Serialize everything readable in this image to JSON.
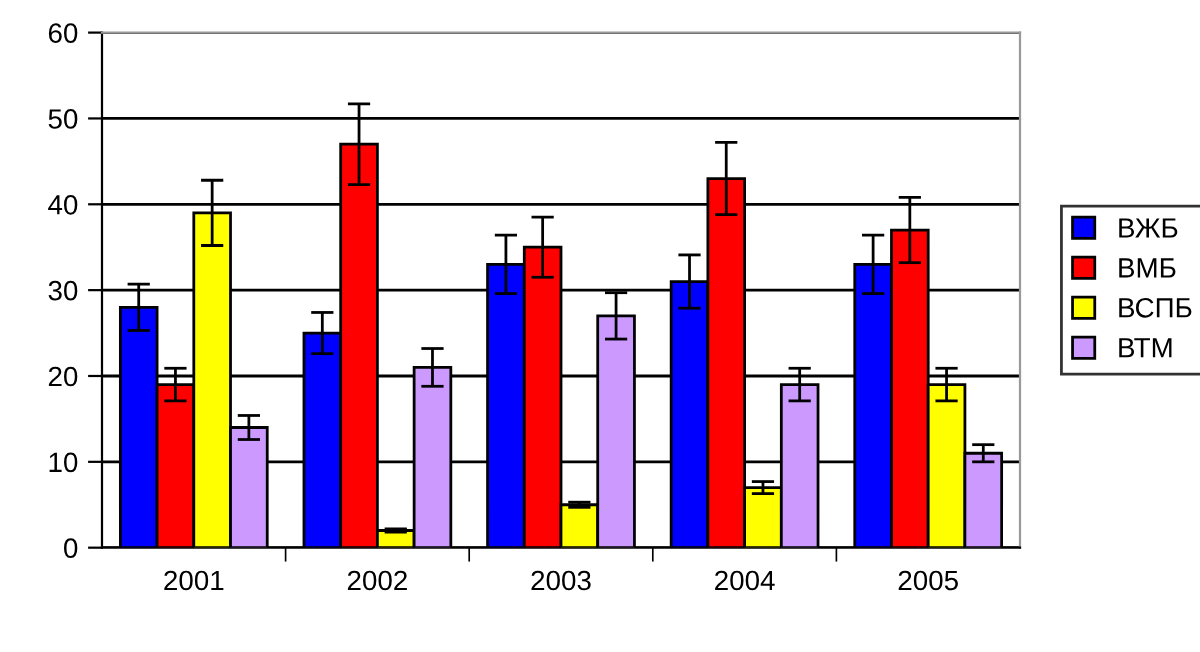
{
  "chart_data": {
    "type": "bar",
    "categories": [
      "2001",
      "2002",
      "2003",
      "2004",
      "2005"
    ],
    "series": [
      {
        "name": "ВЖБ",
        "color": "#0000ff",
        "values": [
          28,
          25,
          33,
          31,
          33
        ],
        "errors": [
          2.7,
          2.4,
          3.4,
          3.1,
          3.4
        ]
      },
      {
        "name": "ВМБ",
        "color": "#ff0000",
        "values": [
          19,
          47,
          35,
          43,
          37
        ],
        "errors": [
          1.9,
          4.7,
          3.5,
          4.2,
          3.8
        ]
      },
      {
        "name": "ВСПБ",
        "color": "#ffff00",
        "values": [
          39,
          2,
          5,
          7,
          19
        ],
        "errors": [
          3.8,
          0.2,
          0.3,
          0.7,
          1.9
        ]
      },
      {
        "name": "ВТМ",
        "color": "#cc99ff",
        "values": [
          14,
          21,
          27,
          19,
          11
        ],
        "errors": [
          1.4,
          2.2,
          2.7,
          1.9,
          1.0
        ]
      }
    ],
    "ylim": [
      0,
      60
    ],
    "yticks": [
      0,
      10,
      20,
      30,
      40,
      50,
      60
    ],
    "grid": "y",
    "legend": "right"
  }
}
